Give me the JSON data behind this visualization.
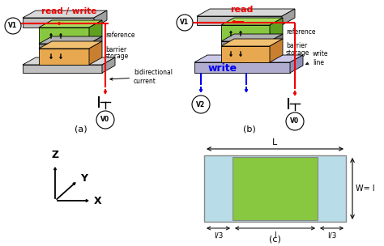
{
  "bg_color": "#ffffff",
  "label_a": "(a)",
  "label_b": "(b)",
  "label_c": "(c)",
  "red_color": "#ee0000",
  "blue_color": "#0000ee",
  "green_color": "#88c840",
  "green_dark": "#60a020",
  "green_top": "#aade60",
  "light_blue": "#b8dce8",
  "light_blue2": "#d0eaf4",
  "orange_color": "#e8a850",
  "orange_top": "#f0c070",
  "orange_dark": "#c88030",
  "gray_face": "#c0c0c0",
  "gray_top": "#d8d8d8",
  "gray_dark": "#a0a0a0",
  "barrier_face": "#909090",
  "barrier_top": "#b0b0b0",
  "barrier_dark": "#787878",
  "sot_face": "#b0acd0",
  "sot_top": "#ccc8e8",
  "sot_dark": "#9090b8",
  "black": "#000000",
  "white": "#ffffff",
  "read_write_label": "read / write",
  "read_label": "read",
  "write_label": "write",
  "reference_label": "reference",
  "barrier_label": "barrier",
  "storage_label": "storage",
  "bidir_label": "bidirectional\ncurrent",
  "write_line_label": "write\nline",
  "dim_L": "L",
  "dim_W": "W= l",
  "dim_thirds": [
    "l/3",
    "l",
    "l/3"
  ],
  "axes_labels": [
    "Z",
    "Y",
    "X"
  ]
}
